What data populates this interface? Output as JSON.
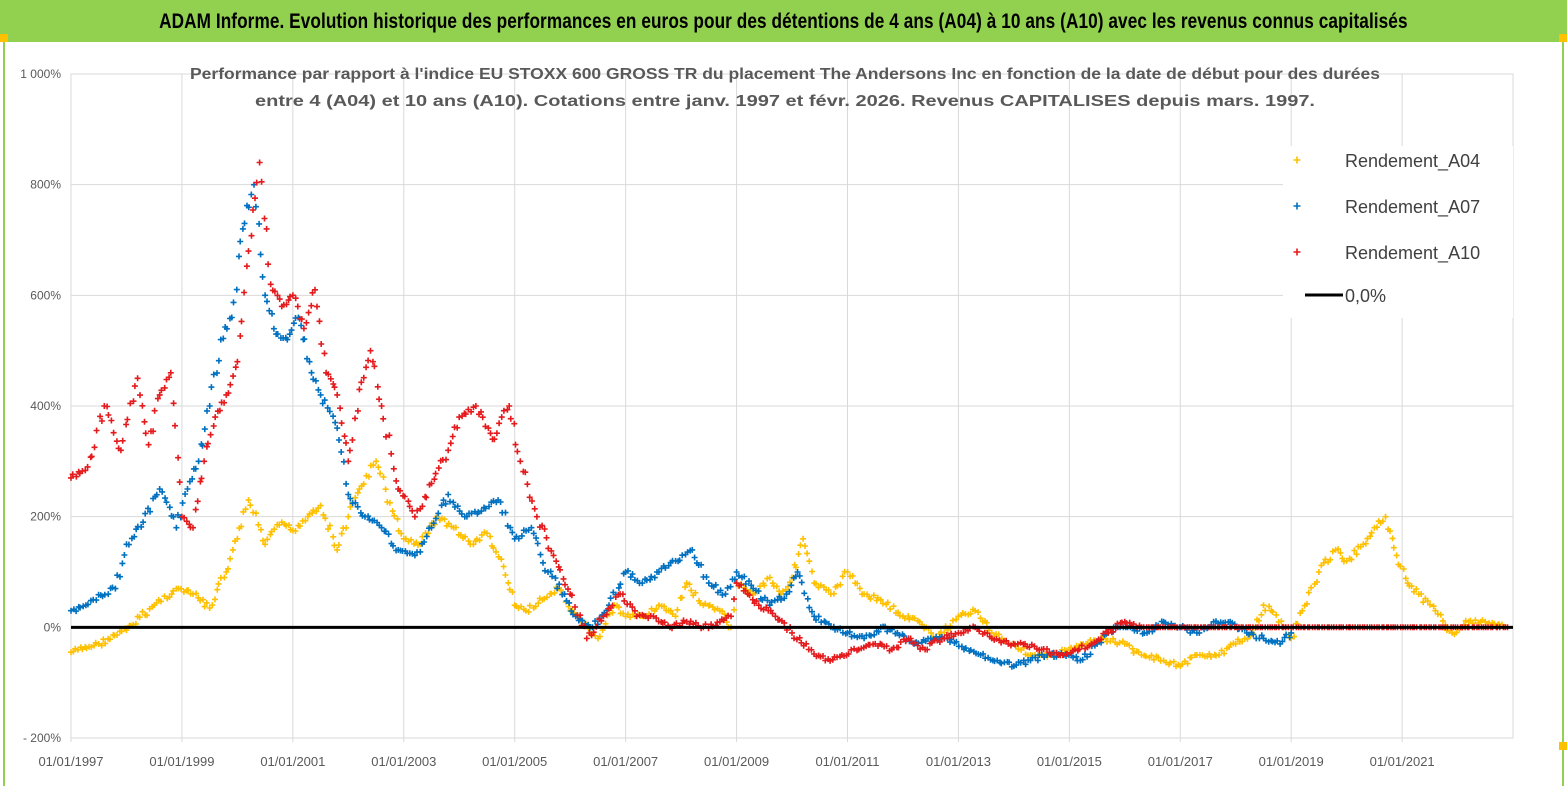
{
  "header": {
    "title": "ADAM Informe. Evolution historique des performances en euros pour des détentions de 4 ans (A04) à 10 ans (A10) avec les revenus connus capitalisés"
  },
  "chart_data": {
    "type": "scatter",
    "title_lines": [
      "Performance par rapport à l'indice EU STOXX 600 GROSS TR  du placement The Andersons Inc en fonction de la date de début pour des durées",
      "entre 4 (A04) et 10 ans (A10). Cotations entre janv. 1997 et févr. 2026. Revenus CAPITALISES depuis mars. 1997."
    ],
    "x_range": [
      "01/01/1997",
      "31/12/2022"
    ],
    "x_tick_labels": [
      "01/01/1997",
      "01/01/1999",
      "01/01/2001",
      "01/01/2003",
      "01/01/2005",
      "01/01/2007",
      "01/01/2009",
      "01/01/2011",
      "01/01/2013",
      "01/01/2015",
      "01/01/2017",
      "01/01/2019",
      "01/01/2021"
    ],
    "y_ticks": [
      1000,
      800,
      600,
      400,
      200,
      0,
      -200
    ],
    "y_tick_labels": [
      "1 000%",
      "800%",
      "600%",
      "400%",
      "200%",
      "0%",
      "- 200%"
    ],
    "ylim": [
      -200,
      1000
    ],
    "grid": "horizontal",
    "legend_position": "top-right",
    "series": [
      {
        "name": "Rendement_A04",
        "color": "#ffc000",
        "marker": "plus",
        "x": [
          1997.0,
          1997.5,
          1998.0,
          1998.5,
          1998.9,
          1999.2,
          1999.5,
          1999.8,
          2000.0,
          2000.2,
          2000.5,
          2000.8,
          2001.0,
          2001.3,
          2001.5,
          2001.8,
          2002.0,
          2002.2,
          2002.5,
          2002.8,
          2003.0,
          2003.3,
          2003.6,
          2003.9,
          2004.2,
          2004.5,
          2004.8,
          2005.0,
          2005.2,
          2005.5,
          2005.8,
          2006.0,
          2006.2,
          2006.5,
          2006.8,
          2007.0,
          2007.3,
          2007.6,
          2007.9,
          2008.1,
          2008.4,
          2008.7,
          2008.9,
          2009.0,
          2009.3,
          2009.6,
          2009.8,
          2010.0,
          2010.2,
          2010.4,
          2010.7,
          2011.0,
          2011.3,
          2011.6,
          2012.0,
          2012.3,
          2012.6,
          2013.0,
          2013.3,
          2013.6,
          2014.0,
          2014.3,
          2014.7,
          2015.0,
          2015.3,
          2015.6,
          2016.0,
          2016.3,
          2016.7,
          2017.0,
          2017.3,
          2017.7,
          2018.0,
          2018.3,
          2018.5,
          2018.9,
          2019.0,
          2019.2,
          2019.5,
          2019.8,
          2020.0,
          2020.3,
          2020.5,
          2020.7,
          2020.9,
          2021.1,
          2021.3,
          2021.6,
          2021.9,
          2022.2,
          2022.5,
          2022.8
        ],
        "values": [
          -45,
          -30,
          -5,
          40,
          70,
          60,
          35,
          100,
          160,
          230,
          150,
          190,
          175,
          205,
          220,
          140,
          200,
          250,
          300,
          210,
          160,
          150,
          200,
          180,
          150,
          170,
          110,
          40,
          30,
          50,
          70,
          30,
          10,
          -20,
          40,
          20,
          20,
          40,
          20,
          80,
          40,
          30,
          0,
          80,
          60,
          90,
          60,
          90,
          160,
          80,
          60,
          100,
          60,
          50,
          20,
          10,
          -20,
          20,
          30,
          -10,
          -30,
          -50,
          -50,
          -40,
          -30,
          -20,
          -30,
          -50,
          -60,
          -70,
          -50,
          -50,
          -30,
          -10,
          40,
          0,
          -20,
          30,
          100,
          140,
          120,
          150,
          180,
          200,
          130,
          80,
          60,
          30,
          -10,
          10,
          10,
          5
        ]
      },
      {
        "name": "Rendement_A07",
        "color": "#0070c0",
        "marker": "plus",
        "x": [
          1997.0,
          1997.4,
          1997.8,
          1998.0,
          1998.3,
          1998.6,
          1998.9,
          1999.1,
          1999.3,
          1999.5,
          1999.7,
          1999.9,
          2000.1,
          2000.3,
          2000.5,
          2000.7,
          2000.9,
          2001.1,
          2001.3,
          2001.5,
          2001.8,
          2002.0,
          2002.3,
          2002.6,
          2002.9,
          2003.2,
          2003.5,
          2003.8,
          2004.1,
          2004.4,
          2004.7,
          2005.0,
          2005.3,
          2005.6,
          2005.9,
          2006.1,
          2006.4,
          2006.7,
          2007.0,
          2007.3,
          2007.6,
          2007.9,
          2008.2,
          2008.5,
          2008.8,
          2009.0,
          2009.3,
          2009.6,
          2009.9,
          2010.1,
          2010.4,
          2010.7,
          2011.0,
          2011.3,
          2011.6,
          2011.9,
          2012.2,
          2012.5,
          2012.8,
          2013.1,
          2013.4,
          2013.7,
          2014.0,
          2014.3,
          2014.6,
          2014.9,
          2015.2,
          2015.5,
          2015.8,
          2016.1,
          2016.4,
          2016.7,
          2017.0,
          2017.3,
          2017.6,
          2017.9,
          2018.2,
          2018.5,
          2018.8,
          2019.0
        ],
        "values": [
          30,
          50,
          70,
          150,
          190,
          250,
          180,
          250,
          300,
          400,
          520,
          560,
          720,
          800,
          600,
          530,
          520,
          560,
          480,
          420,
          360,
          240,
          200,
          180,
          140,
          130,
          180,
          240,
          200,
          210,
          230,
          160,
          180,
          100,
          60,
          20,
          0,
          40,
          100,
          80,
          100,
          120,
          140,
          80,
          60,
          100,
          70,
          40,
          60,
          100,
          20,
          0,
          -10,
          -20,
          0,
          -10,
          -30,
          -20,
          -20,
          -40,
          -50,
          -60,
          -70,
          -60,
          -50,
          -50,
          -60,
          -30,
          0,
          0,
          -10,
          10,
          0,
          -10,
          10,
          10,
          -10,
          -20,
          -30,
          -10
        ]
      },
      {
        "name": "Rendement_A10",
        "color": "#e41a1c",
        "marker": "plus",
        "x": [
          1997.0,
          1997.3,
          1997.6,
          1997.9,
          1998.2,
          1998.4,
          1998.6,
          1998.8,
          1999.0,
          1999.2,
          1999.4,
          1999.6,
          1999.8,
          2000.0,
          2000.2,
          2000.4,
          2000.6,
          2000.8,
          2001.0,
          2001.2,
          2001.4,
          2001.6,
          2001.8,
          2002.0,
          2002.2,
          2002.4,
          2002.6,
          2002.9,
          2003.2,
          2003.5,
          2003.8,
          2004.0,
          2004.3,
          2004.6,
          2004.9,
          2005.1,
          2005.4,
          2005.7,
          2006.0,
          2006.3,
          2006.6,
          2006.9,
          2007.2,
          2007.5,
          2007.8,
          2008.1,
          2008.4,
          2008.7,
          2008.9,
          2009.0,
          2009.2,
          2009.4,
          2009.7,
          2010.0,
          2010.3,
          2010.6,
          2010.9,
          2011.2,
          2011.5,
          2011.8,
          2012.1,
          2012.4,
          2012.7,
          2013.0,
          2013.3,
          2013.6,
          2013.9,
          2014.2,
          2014.5,
          2014.8,
          2015.1,
          2015.4,
          2015.7,
          2016.0,
          2016.3,
          2016.6,
          2016.9,
          2017.2,
          2017.5,
          2017.8,
          2018.1,
          2018.4,
          2018.7,
          2019.0,
          2019.3,
          2019.6,
          2019.9,
          2020.2,
          2020.5,
          2020.8,
          2021.1,
          2021.4,
          2021.7,
          2022.0,
          2022.3,
          2022.6,
          2022.9
        ],
        "values": [
          270,
          290,
          400,
          320,
          450,
          330,
          420,
          460,
          200,
          180,
          300,
          380,
          420,
          480,
          680,
          840,
          620,
          580,
          600,
          540,
          610,
          460,
          420,
          300,
          430,
          500,
          400,
          250,
          200,
          260,
          320,
          380,
          400,
          340,
          400,
          300,
          200,
          130,
          60,
          -20,
          20,
          60,
          20,
          20,
          0,
          10,
          0,
          10,
          20,
          80,
          60,
          40,
          20,
          -10,
          -40,
          -60,
          -50,
          -40,
          -30,
          -40,
          -20,
          -40,
          -20,
          -10,
          0,
          -20,
          -30,
          -30,
          -40,
          -50,
          -40,
          -30,
          -10,
          10,
          0,
          0,
          0,
          0,
          0,
          0,
          0,
          0,
          0,
          0,
          0,
          0,
          0,
          0,
          0,
          0,
          0,
          0,
          0,
          0,
          0,
          0,
          0
        ]
      }
    ],
    "reference_line": {
      "name": "0,0%",
      "value": 0,
      "color": "#000000"
    }
  }
}
